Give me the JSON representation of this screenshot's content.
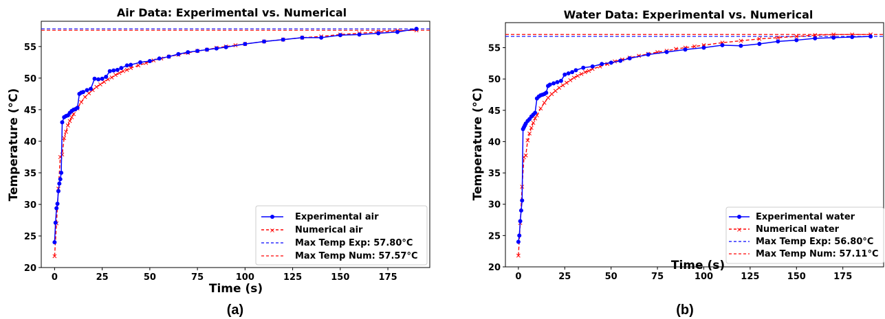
{
  "chart_data": [
    {
      "type": "line",
      "panel_label": "(a)",
      "title": "Air Data: Experimental vs. Numerical",
      "xlabel": "Time (s)",
      "ylabel": "Temperature (°C)",
      "xlim": [
        -7,
        197
      ],
      "ylim": [
        20,
        59
      ],
      "xticks": [
        0,
        25,
        50,
        75,
        100,
        125,
        150,
        175
      ],
      "yticks": [
        20,
        25,
        30,
        35,
        40,
        45,
        50,
        55
      ],
      "grid": false,
      "legend_position": "lower-right",
      "series": [
        {
          "name": "Experimental air",
          "color": "#0000ff",
          "style": "solid",
          "marker": "circle",
          "x": [
            0,
            0.5,
            1,
            1.5,
            2,
            2.5,
            3,
            3.5,
            4,
            5,
            6,
            7,
            8,
            9,
            10,
            11,
            12,
            13,
            14,
            15,
            17,
            19,
            21,
            23,
            25,
            27,
            29,
            31,
            33,
            35,
            38,
            40,
            45,
            50,
            55,
            60,
            65,
            70,
            75,
            80,
            85,
            90,
            100,
            110,
            120,
            130,
            140,
            150,
            160,
            170,
            180,
            190
          ],
          "y": [
            24.0,
            27.1,
            29.4,
            30.1,
            32.1,
            33.3,
            34.0,
            35.0,
            43.0,
            43.8,
            44.0,
            44.1,
            44.5,
            44.8,
            45.0,
            45.1,
            45.3,
            47.5,
            47.7,
            47.8,
            48.1,
            48.3,
            49.9,
            49.8,
            49.9,
            50.2,
            51.1,
            51.2,
            51.3,
            51.6,
            52.0,
            52.1,
            52.5,
            52.7,
            53.1,
            53.4,
            53.8,
            54.1,
            54.3,
            54.5,
            54.7,
            54.9,
            55.4,
            55.8,
            56.1,
            56.4,
            56.4,
            56.8,
            56.9,
            57.1,
            57.3,
            57.8
          ]
        },
        {
          "name": "Numerical air",
          "color": "#ff0000",
          "style": "dashed",
          "marker": "x",
          "x": [
            0,
            1,
            2,
            3,
            4,
            5,
            6,
            7,
            8,
            9,
            10,
            12,
            14,
            16,
            18,
            20,
            22,
            24,
            26,
            28,
            30,
            32,
            34,
            36,
            38,
            40,
            44,
            48,
            52,
            56,
            60,
            65,
            70,
            75,
            80,
            85,
            90,
            95,
            100,
            110,
            120,
            130,
            140,
            150,
            160,
            170,
            180,
            190
          ],
          "y": [
            21.8,
            27.0,
            32.5,
            37.5,
            37.9,
            40.5,
            41.5,
            42.5,
            43.2,
            43.8,
            44.3,
            45.2,
            46.2,
            47.0,
            47.6,
            48.1,
            48.6,
            49.0,
            49.4,
            49.8,
            50.1,
            50.5,
            50.8,
            51.1,
            51.3,
            51.6,
            52.0,
            52.4,
            52.8,
            53.1,
            53.4,
            53.7,
            54.0,
            54.3,
            54.5,
            54.8,
            55.0,
            55.2,
            55.4,
            55.8,
            56.1,
            56.4,
            56.6,
            56.9,
            57.1,
            57.3,
            57.5,
            57.57
          ]
        }
      ],
      "reference_lines": [
        {
          "name": "Max Temp Exp: 57.80°C",
          "y": 57.8,
          "color": "#0000ff",
          "style": "dashed"
        },
        {
          "name": "Max Temp Num: 57.57°C",
          "y": 57.57,
          "color": "#ff0000",
          "style": "dashed"
        }
      ]
    },
    {
      "type": "line",
      "panel_label": "(b)",
      "title": "Water Data: Experimental vs. Numerical",
      "xlabel": "Time (s)",
      "ylabel": "Temperature (°C)",
      "xlim": [
        -7,
        197
      ],
      "ylim": [
        20,
        59
      ],
      "xticks": [
        0,
        25,
        50,
        75,
        100,
        125,
        150,
        175
      ],
      "yticks": [
        20,
        25,
        30,
        35,
        40,
        45,
        50,
        55
      ],
      "grid": false,
      "legend_position": "lower-right",
      "series": [
        {
          "name": "Experimental water",
          "color": "#0000ff",
          "style": "solid",
          "marker": "circle",
          "x": [
            0,
            0.5,
            1,
            1.5,
            2,
            2.5,
            3,
            3.5,
            4,
            5,
            6,
            7,
            8,
            9,
            10,
            11,
            12,
            13,
            14,
            15,
            16,
            17,
            19,
            21,
            23,
            25,
            27,
            29,
            31,
            35,
            40,
            45,
            50,
            55,
            60,
            70,
            80,
            90,
            100,
            110,
            120,
            130,
            140,
            150,
            160,
            170,
            180,
            190
          ],
          "y": [
            24.0,
            25.0,
            27.3,
            29.0,
            30.6,
            42.0,
            42.3,
            42.6,
            42.9,
            43.3,
            43.6,
            44.0,
            44.3,
            44.6,
            46.9,
            47.2,
            47.4,
            47.5,
            47.6,
            47.8,
            48.9,
            49.1,
            49.3,
            49.5,
            49.7,
            50.7,
            50.9,
            51.1,
            51.4,
            51.8,
            52.0,
            52.4,
            52.6,
            52.9,
            53.3,
            53.9,
            54.3,
            54.7,
            55.0,
            55.4,
            55.3,
            55.6,
            56.0,
            56.2,
            56.5,
            56.6,
            56.7,
            56.8
          ]
        },
        {
          "name": "Numerical water",
          "color": "#ff0000",
          "style": "dashed",
          "marker": "x",
          "x": [
            0,
            1,
            2,
            3,
            4,
            5,
            6,
            7,
            8,
            9,
            10,
            12,
            14,
            16,
            18,
            20,
            22,
            24,
            26,
            28,
            30,
            32,
            34,
            36,
            38,
            40,
            44,
            48,
            52,
            56,
            60,
            65,
            70,
            75,
            80,
            85,
            90,
            95,
            100,
            110,
            120,
            130,
            140,
            150,
            160,
            170,
            180,
            190
          ],
          "y": [
            21.8,
            27.0,
            32.8,
            37.5,
            37.8,
            40.2,
            41.3,
            42.2,
            43.0,
            43.7,
            44.2,
            45.3,
            46.2,
            47.0,
            47.6,
            48.1,
            48.6,
            49.0,
            49.4,
            49.8,
            50.2,
            50.5,
            50.8,
            51.1,
            51.3,
            51.6,
            52.0,
            52.4,
            52.8,
            53.1,
            53.4,
            53.7,
            54.0,
            54.3,
            54.5,
            54.8,
            55.0,
            55.2,
            55.4,
            55.8,
            56.1,
            56.4,
            56.6,
            56.8,
            57.0,
            57.1,
            57.1,
            57.11
          ]
        }
      ],
      "reference_lines": [
        {
          "name": "Max Temp Exp: 56.80°C",
          "y": 56.8,
          "color": "#0000ff",
          "style": "dashed"
        },
        {
          "name": "Max Temp Num: 57.11°C",
          "y": 57.11,
          "color": "#ff0000",
          "style": "dashed"
        }
      ]
    }
  ]
}
